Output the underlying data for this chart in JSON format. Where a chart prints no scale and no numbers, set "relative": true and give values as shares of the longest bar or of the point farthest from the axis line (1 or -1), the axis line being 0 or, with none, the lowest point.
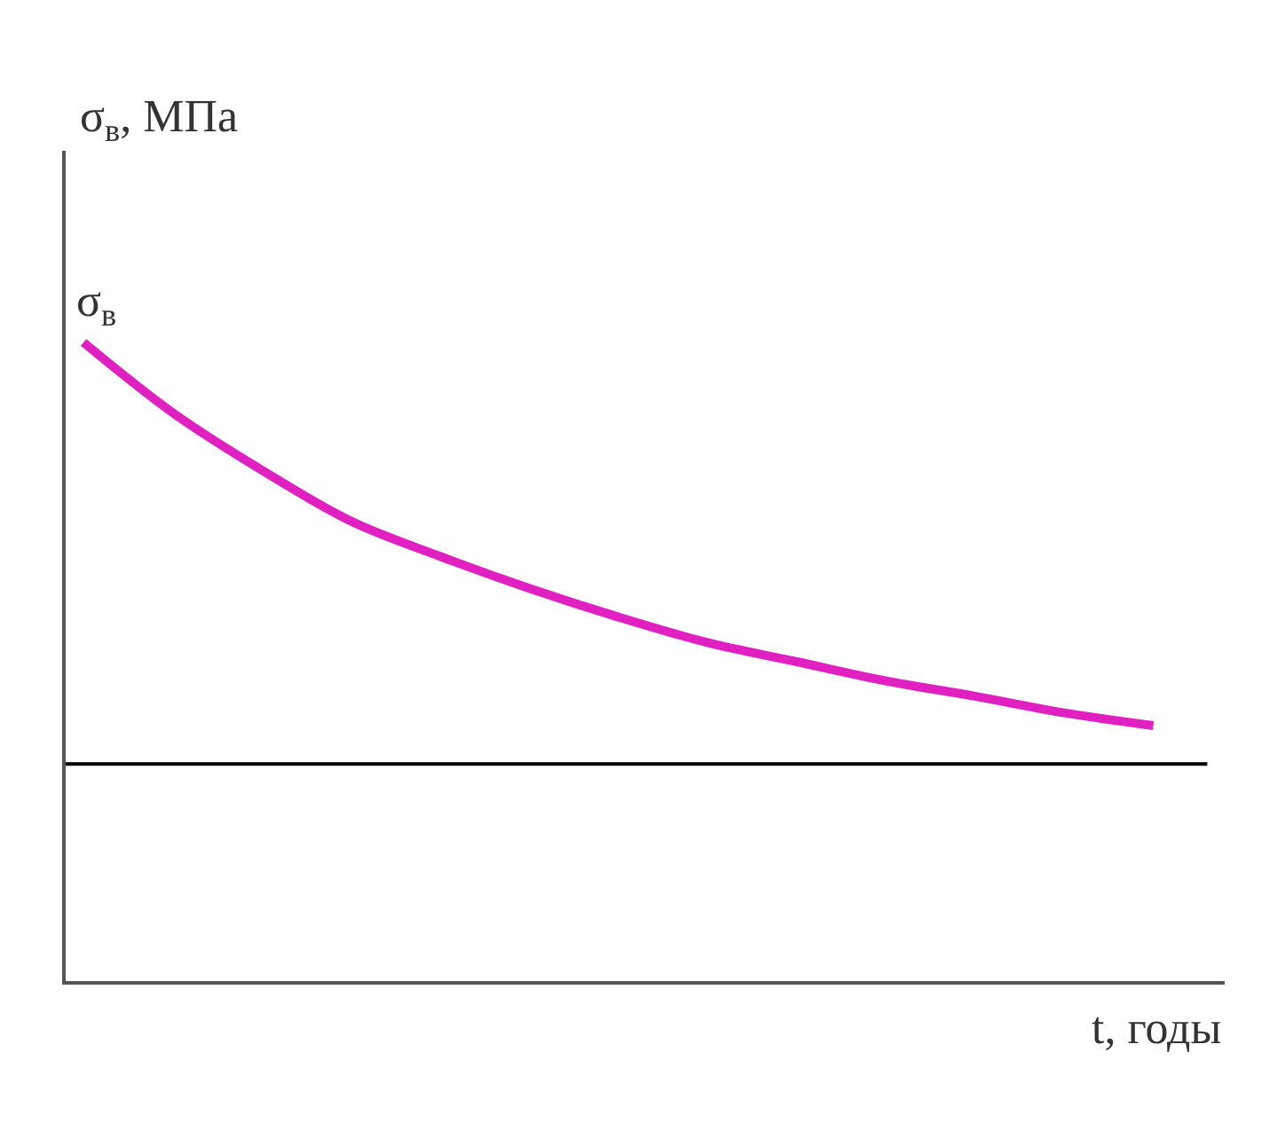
{
  "chart_data": {
    "type": "line",
    "relative": true,
    "xlabel": "t, годы",
    "ylabel": "σ$_{в}$, МПа",
    "annotations": [
      "σ$_{в}$"
    ],
    "categories": [
      null,
      null,
      null,
      null,
      null,
      null,
      null,
      null,
      null,
      null,
      null,
      null,
      null
    ],
    "series": [
      {
        "color": "#e020c0",
        "values": [
          1.0,
          0.89,
          0.8,
          0.72,
          0.665,
          0.615,
          0.57,
          0.53,
          0.5,
          0.47,
          0.446,
          0.42,
          0.4
        ]
      }
    ],
    "ref_lines": [
      {
        "axis": "y",
        "value": 0.34,
        "color": "#000000"
      }
    ]
  }
}
